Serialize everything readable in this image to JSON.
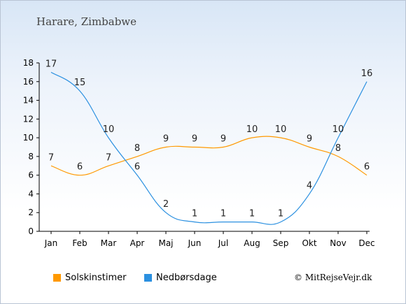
{
  "header": {
    "title": "Harare, Zimbabwe"
  },
  "footer": {
    "copyright": "© MitRejseVejr.dk"
  },
  "chart_data": {
    "type": "line",
    "categories": [
      "Jan",
      "Feb",
      "Mar",
      "Apr",
      "Maj",
      "Jun",
      "Jul",
      "Aug",
      "Sep",
      "Okt",
      "Nov",
      "Dec"
    ],
    "ylim": [
      0,
      18
    ],
    "yticks": [
      0,
      2,
      4,
      6,
      8,
      10,
      12,
      14,
      16,
      18
    ],
    "grid": false,
    "legend_position": "bottom-left",
    "series": [
      {
        "name": "Solskinstimer",
        "color": "#ff9900",
        "values": [
          7,
          6,
          7,
          8,
          9,
          9,
          9,
          10,
          10,
          9,
          8,
          6
        ]
      },
      {
        "name": "Nedbørsdage",
        "color": "#2b90e0",
        "values": [
          17,
          15,
          10,
          6,
          2,
          1,
          1,
          1,
          1,
          4,
          10,
          16
        ]
      }
    ]
  }
}
